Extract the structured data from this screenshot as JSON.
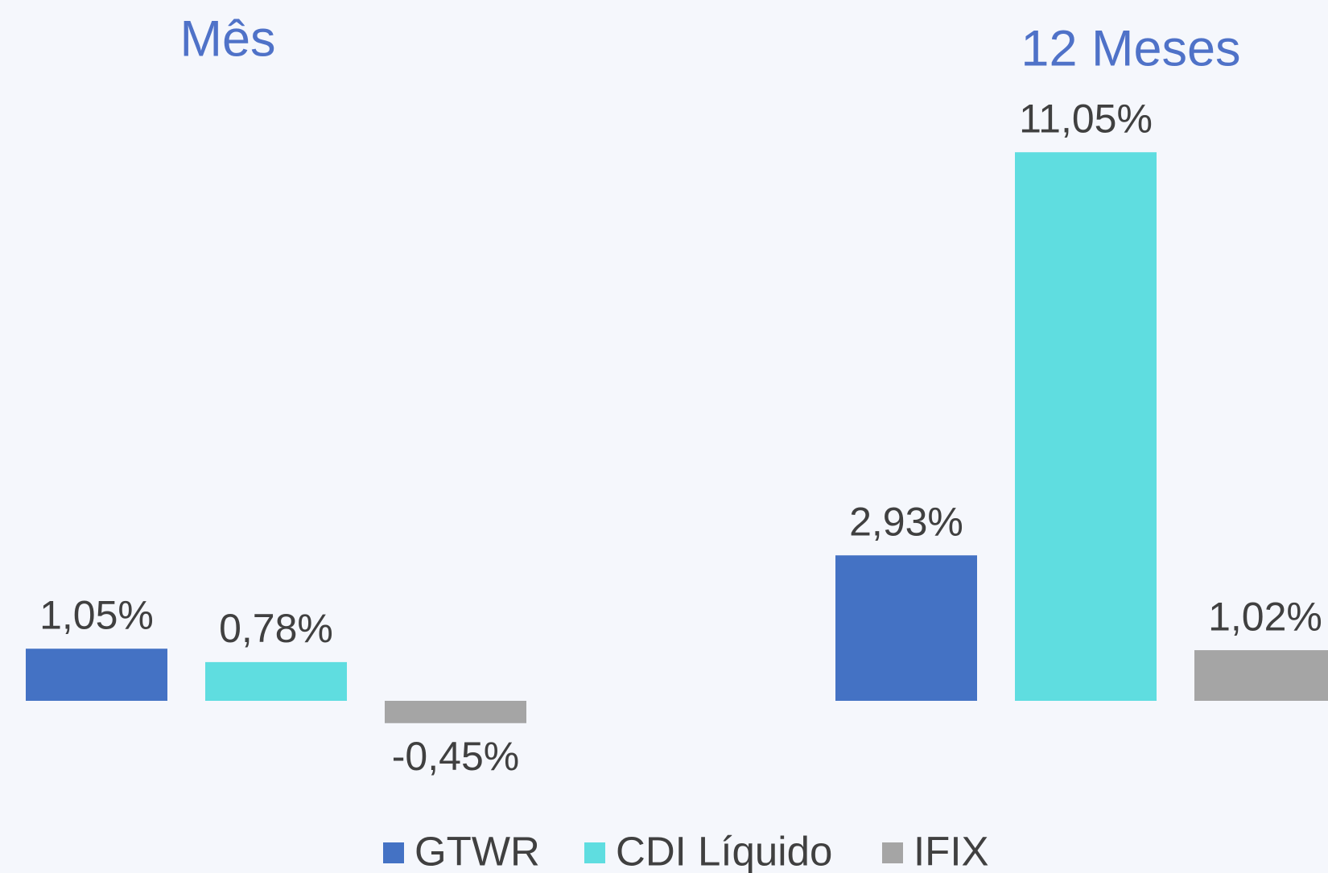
{
  "chart_data": {
    "type": "bar",
    "categories": [
      "Mês",
      "12 Meses"
    ],
    "series": [
      {
        "name": "GTWR",
        "color": "#4472c4",
        "values": [
          1.05,
          2.93
        ],
        "value_labels": [
          "1,05%",
          "2,93%"
        ]
      },
      {
        "name": "CDI Líquido",
        "color": "#5fdde0",
        "values": [
          0.78,
          11.05
        ],
        "value_labels": [
          "0,78%",
          "11,05%"
        ]
      },
      {
        "name": "IFIX",
        "color": "#a5a5a5",
        "values": [
          -0.45,
          1.02
        ],
        "value_labels": [
          "-0,45%",
          "1,02%"
        ]
      }
    ]
  }
}
